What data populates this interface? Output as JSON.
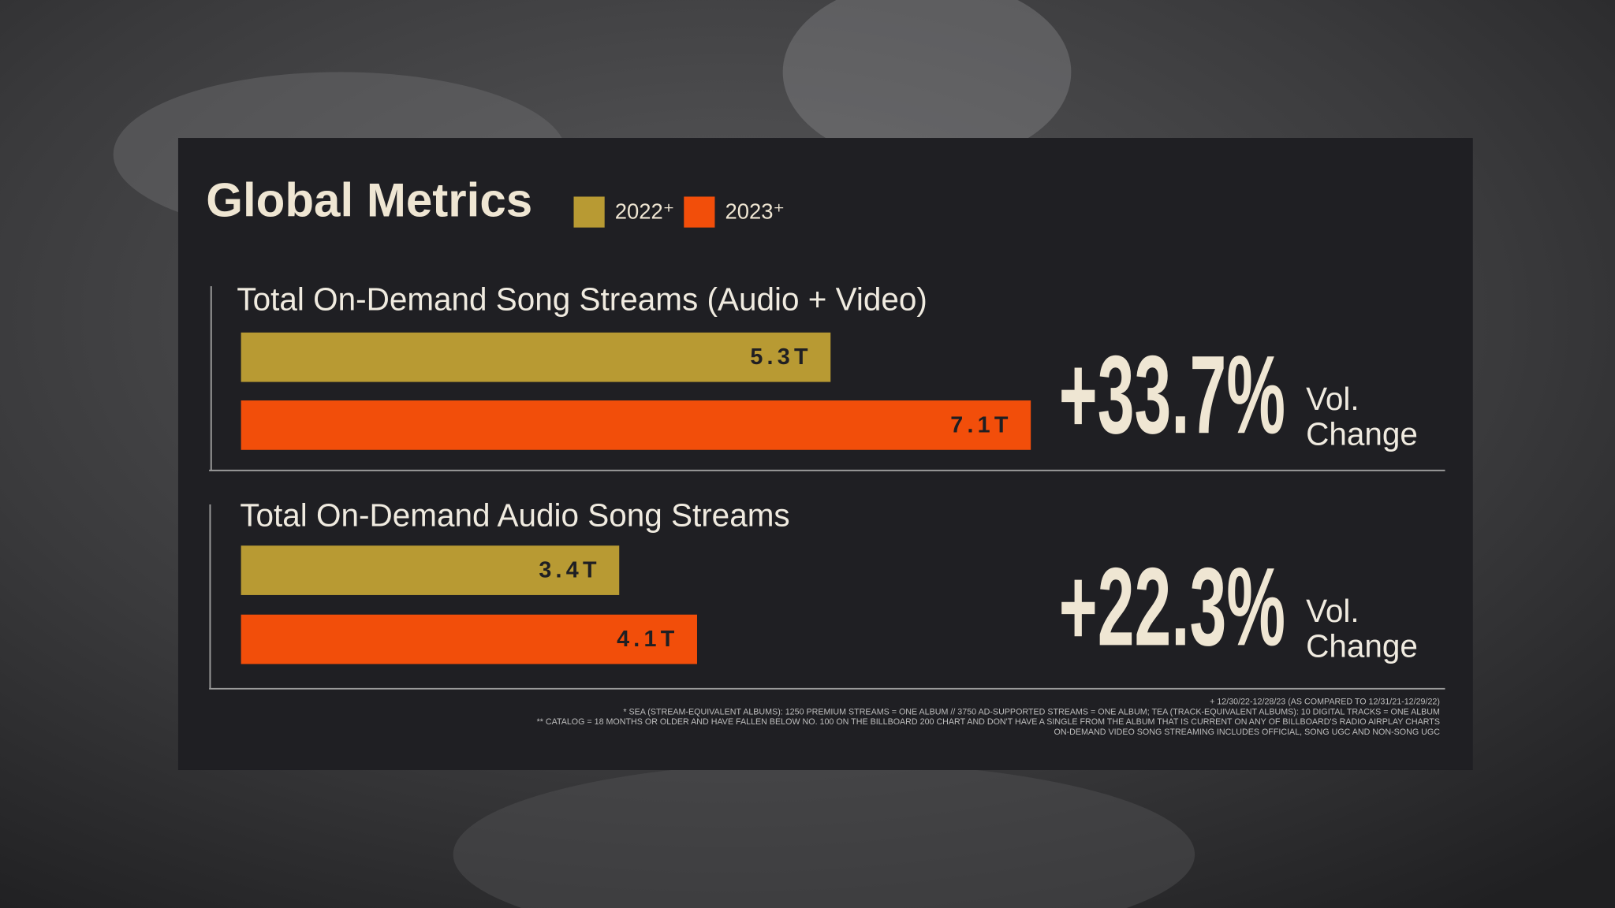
{
  "chart_data": {
    "type": "bar",
    "title": "Global Metrics",
    "categories": [
      "Total On-Demand Song Streams (Audio + Video)",
      "Total On-Demand Audio Song Streams"
    ],
    "series": [
      {
        "name": "2022⁺",
        "color": "#b89a33",
        "values": [
          5.3,
          3.4
        ],
        "value_labels": [
          "5.3T",
          "3.4T"
        ]
      },
      {
        "name": "2023⁺",
        "color": "#f24e0a",
        "values": [
          7.1,
          4.1
        ],
        "value_labels": [
          "7.1T",
          "4.1T"
        ]
      }
    ],
    "annotations": [
      {
        "text": "+33.7%",
        "lines": [
          "Vol.",
          "Change"
        ]
      },
      {
        "text": "+22.3%",
        "lines": [
          "Vol.",
          "Change"
        ]
      }
    ],
    "footnotes": [
      "+ 12/30/22-12/28/23 (AS COMPARED TO 12/31/21-12/29/22)",
      "* SEA (STREAM-EQUIVALENT ALBUMS): 1250 PREMIUM STREAMS = ONE ALBUM // 3750 AD-SUPPORTED STREAMS = ONE ALBUM; TEA (TRACK-EQUIVALENT ALBUMS): 10 DIGITAL TRACKS = ONE ALBUM",
      "** CATALOG = 18 MONTHS OR OLDER AND HAVE FALLEN BELOW NO. 100 ON THE BILLBOARD 200 CHART AND DON'T HAVE A SINGLE FROM THE ALBUM THAT IS CURRENT ON ANY OF BILLBOARD'S RADIO AIRPLAY CHARTS",
      "ON-DEMAND VIDEO SONG STREAMING INCLUDES OFFICIAL, SONG UGC AND NON-SONG UGC"
    ]
  }
}
